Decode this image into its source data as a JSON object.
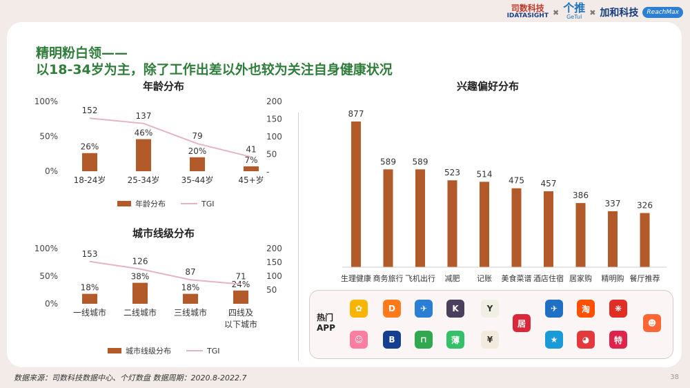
{
  "header": {
    "logo1_cn": "司数科技",
    "logo1_en": "IDATASIGHT",
    "logo2_cn": "个推",
    "logo2_en": "GeTuI",
    "logo3_cn": "加和科技",
    "logo4": "ReachMax"
  },
  "title": {
    "line1": "精明粉白领——",
    "line2": "以18-34岁为主，除了工作出差以外也较为关注自身健康状况"
  },
  "age_chart": {
    "title": "年龄分布",
    "legend_bar": "年龄分布",
    "legend_line": "TGI"
  },
  "city_chart": {
    "title": "城市线级分布",
    "legend_bar": "城市线级分布",
    "legend_line": "TGI"
  },
  "interest_chart": {
    "title": "兴趣偏好分布"
  },
  "apps": {
    "label_line1": "热门",
    "label_line2": "APP",
    "icons": [
      {
        "name": "meituan-app-icon",
        "glyph": "✿",
        "color": "#f7b500"
      },
      {
        "name": "didi-app-icon",
        "glyph": "D",
        "color": "#ff7a1a"
      },
      {
        "name": "ctrip-app-icon",
        "glyph": "✈",
        "color": "#2a7fd4"
      },
      {
        "name": "keep-app-icon",
        "glyph": "K",
        "color": "#4a3f5c"
      },
      {
        "name": "notes-app-icon",
        "glyph": "Y",
        "color": "#f0efe4"
      },
      {
        "name": "home-app-icon",
        "glyph": "居",
        "color": "#d8283a"
      },
      {
        "name": "tongcheng-app-icon",
        "glyph": "✈",
        "color": "#1f6fc4"
      },
      {
        "name": "taobao-app-icon",
        "glyph": "淘",
        "color": "#ff5000"
      },
      {
        "name": "pinduoduo-app-icon",
        "glyph": "❋",
        "color": "#e02e24"
      },
      {
        "name": "girl-app-icon",
        "glyph": "☺",
        "color": "#ff7da0"
      },
      {
        "name": "booking-app-icon",
        "glyph": "B",
        "color": "#16408f"
      },
      {
        "name": "meituan-hotel-app-icon",
        "glyph": "⊓",
        "color": "#2fa84f"
      },
      {
        "name": "mint-app-icon",
        "glyph": "薄",
        "color": "#34c16a"
      },
      {
        "name": "bookkeeping-app-icon",
        "glyph": "¥",
        "color": "#f2eadc"
      },
      {
        "name": "travel-app-icon",
        "glyph": "★",
        "color": "#1a9bd7"
      },
      {
        "name": "jd-app-icon",
        "glyph": "◕",
        "color": "#e4393c"
      },
      {
        "name": "temai-app-icon",
        "glyph": "特",
        "color": "#e0234a"
      },
      {
        "name": "dianping-app-icon",
        "glyph": "☻",
        "color": "#ff6633"
      }
    ]
  },
  "footer": {
    "source": "数据来源：司数科技数据中心、个灯数盘    数据周期：2020.8-2022.7",
    "page": "38"
  },
  "chart_data": [
    {
      "type": "bar",
      "title": "年龄分布",
      "categories": [
        "18-24岁",
        "25-34岁",
        "35-44岁",
        "45+岁"
      ],
      "series": [
        {
          "name": "年龄分布",
          "values": [
            26,
            46,
            20,
            7
          ],
          "value_labels": [
            "26%",
            "46%",
            "20%",
            "7%"
          ],
          "axis": "left"
        },
        {
          "name": "TGI",
          "type": "line",
          "values": [
            152,
            137,
            79,
            41
          ],
          "axis": "right"
        }
      ],
      "left_ticks": [
        "100%",
        "50%",
        "0%"
      ],
      "right_ticks": [
        "200",
        "150",
        "100",
        "50",
        "-"
      ],
      "ylim_left": [
        0,
        100
      ],
      "ylim_right": [
        0,
        200
      ],
      "colors": {
        "bar": "#b35a2a",
        "line": "#e6b4bd"
      }
    },
    {
      "type": "bar",
      "title": "城市线级分布",
      "categories": [
        "一线城市",
        "二线城市",
        "三线城市",
        "四线及\n以下城市"
      ],
      "series": [
        {
          "name": "城市线级分布",
          "values": [
            18,
            38,
            18,
            24
          ],
          "value_labels": [
            "18%",
            "38%",
            "18%",
            "24%"
          ],
          "axis": "left"
        },
        {
          "name": "TGI",
          "type": "line",
          "values": [
            153,
            126,
            87,
            71
          ],
          "axis": "right"
        }
      ],
      "left_ticks": [
        "100%",
        "50%",
        "0%"
      ],
      "right_ticks": [
        "200",
        "150",
        "100",
        "50"
      ],
      "ylim_left": [
        0,
        100
      ],
      "ylim_right": [
        0,
        200
      ],
      "colors": {
        "bar": "#b35a2a",
        "line": "#e6b4bd"
      }
    },
    {
      "type": "bar",
      "title": "兴趣偏好分布",
      "categories": [
        "生理健康",
        "商务旅行",
        "飞机出行",
        "减肥",
        "记账",
        "美食菜谱",
        "酒店住宿",
        "居家购",
        "精明购",
        "餐厅推荐"
      ],
      "values": [
        877,
        589,
        589,
        523,
        514,
        475,
        457,
        386,
        337,
        326
      ],
      "ylim": [
        0,
        900
      ],
      "colors": {
        "bar": "#b35a2a"
      }
    }
  ]
}
